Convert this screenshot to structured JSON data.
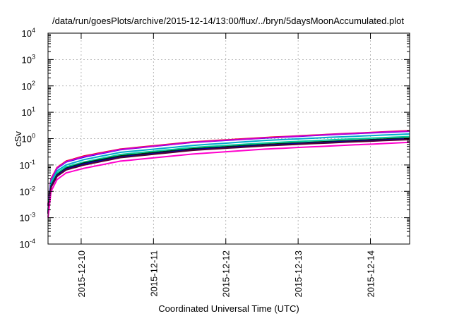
{
  "chart_data": {
    "type": "line",
    "title": "/data/run/goesPlots/archive/2015-12-14/13:00/flux/../bryn/5daysMoonAccumulated.plot",
    "xlabel": "Coordinated Universal Time (UTC)",
    "ylabel": "cSv",
    "yscale": "log",
    "ylim": [
      0.0001,
      10000
    ],
    "xlim": [
      "2015-12-09T13:00",
      "2015-12-14T13:00"
    ],
    "grid": true,
    "x_ticks": [
      "2015-12-10",
      "2015-12-11",
      "2015-12-12",
      "2015-12-13",
      "2015-12-14"
    ],
    "y_ticks": [
      {
        "value": 0.0001,
        "base": "10",
        "exp": "-4"
      },
      {
        "value": 0.001,
        "base": "10",
        "exp": "-3"
      },
      {
        "value": 0.01,
        "base": "10",
        "exp": "-2"
      },
      {
        "value": 0.1,
        "base": "10",
        "exp": "-1"
      },
      {
        "value": 1,
        "base": "10",
        "exp": "0"
      },
      {
        "value": 10,
        "base": "10",
        "exp": "1"
      },
      {
        "value": 100,
        "base": "10",
        "exp": "2"
      },
      {
        "value": 1000,
        "base": "10",
        "exp": "3"
      },
      {
        "value": 10000,
        "base": "10",
        "exp": "4"
      }
    ],
    "x": [
      "2015-12-09T13:00",
      "2015-12-09T14:00",
      "2015-12-09T16:00",
      "2015-12-09T19:00",
      "2015-12-10T01:00",
      "2015-12-10T13:00",
      "2015-12-11T13:00",
      "2015-12-12T13:00",
      "2015-12-13T13:00",
      "2015-12-14T13:00"
    ],
    "series": [
      {
        "color": "#ff0000",
        "values": [
          0.003,
          0.03,
          0.08,
          0.14,
          0.22,
          0.4,
          0.75,
          1.1,
          1.5,
          2.0
        ]
      },
      {
        "color": "#0000ff",
        "values": [
          0.0028,
          0.028,
          0.075,
          0.13,
          0.2,
          0.38,
          0.72,
          1.05,
          1.45,
          1.9
        ]
      },
      {
        "color": "#cc00cc",
        "values": [
          0.0029,
          0.029,
          0.077,
          0.135,
          0.21,
          0.39,
          0.73,
          1.07,
          1.48,
          1.95
        ]
      },
      {
        "color": "#00aacc",
        "values": [
          0.002,
          0.022,
          0.06,
          0.1,
          0.16,
          0.3,
          0.55,
          0.85,
          1.15,
          1.5
        ]
      },
      {
        "color": "#00cc99",
        "values": [
          0.0018,
          0.018,
          0.05,
          0.085,
          0.13,
          0.25,
          0.46,
          0.68,
          0.92,
          1.2
        ]
      },
      {
        "color": "#003300",
        "values": [
          0.0016,
          0.016,
          0.043,
          0.075,
          0.12,
          0.22,
          0.41,
          0.6,
          0.8,
          1.05
        ]
      },
      {
        "color": "#0000aa",
        "values": [
          0.0015,
          0.015,
          0.04,
          0.07,
          0.11,
          0.2,
          0.38,
          0.56,
          0.75,
          0.98
        ]
      },
      {
        "color": "#550033",
        "values": [
          0.0014,
          0.014,
          0.037,
          0.065,
          0.1,
          0.19,
          0.36,
          0.53,
          0.71,
          0.92
        ]
      },
      {
        "color": "#ff00cc",
        "values": [
          0.001,
          0.01,
          0.028,
          0.05,
          0.075,
          0.14,
          0.26,
          0.4,
          0.54,
          0.72
        ]
      }
    ]
  }
}
